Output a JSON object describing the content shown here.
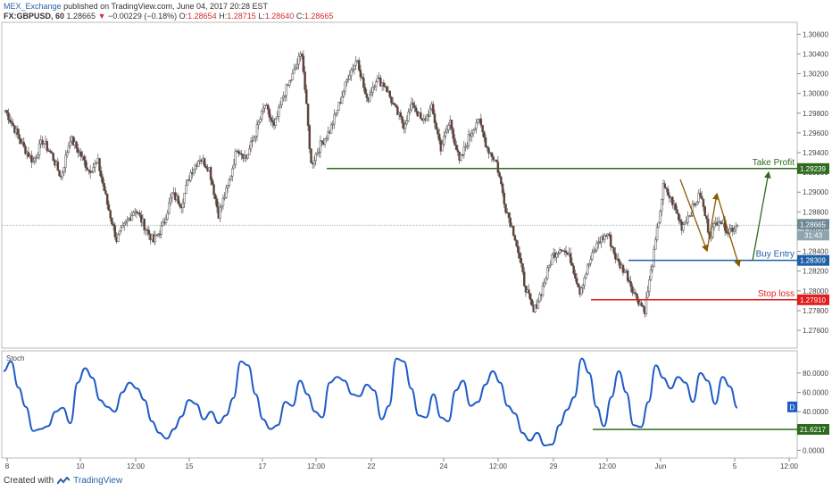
{
  "header": {
    "publisher": "MEX_Exchange",
    "published_text": "published on TradingView.com, June 04, 2017 20:28 EST",
    "symbol": "FX:GBPUSD, 60",
    "last": "1.28665",
    "change": "−0.00229 (−0.18%)",
    "open_label": "O:",
    "open": "1.28654",
    "high_label": "H:",
    "high": "1.28715",
    "low_label": "L:",
    "low": "1.28640",
    "close_label": "C:",
    "close": "1.28665"
  },
  "footer": {
    "created_with": "Created with",
    "brand": "TradingView"
  },
  "colors": {
    "up": "#f2f2f2",
    "down": "#6b3a2c",
    "take_profit": "#2e6b1f",
    "buy_entry": "#1f5fa8",
    "stop_loss": "#e01e1e",
    "stoch": "#1f5cc8",
    "arrows": "#8a5a00"
  },
  "chart_data": [
    {
      "type": "candlestick",
      "ylim": [
        1.2742,
        1.3072
      ],
      "yticks": [
        "1.30600",
        "1.30400",
        "1.30200",
        "1.30000",
        "1.29800",
        "1.29600",
        "1.29400",
        "1.29200",
        "1.29000",
        "1.28800",
        "1.28600",
        "1.28400",
        "1.28200",
        "1.28000",
        "1.27800",
        "1.27600"
      ],
      "xticks": [
        "8",
        "10",
        "12:00",
        "15",
        "17",
        "12:00",
        "22",
        "24",
        "12:00",
        "29",
        "12:00",
        "Jun",
        "5",
        "12:00"
      ],
      "price_path": [
        1.2983,
        1.2964,
        1.2945,
        1.2931,
        1.2952,
        1.2938,
        1.2915,
        1.2955,
        1.294,
        1.2922,
        1.293,
        1.2888,
        1.2852,
        1.2868,
        1.2883,
        1.2866,
        1.285,
        1.2866,
        1.2898,
        1.2888,
        1.292,
        1.2935,
        1.2924,
        1.2878,
        1.2905,
        1.2945,
        1.2935,
        1.296,
        1.2988,
        1.2965,
        1.2998,
        1.3018,
        1.3042,
        1.2928,
        1.2948,
        1.2962,
        1.2988,
        1.3018,
        1.3035,
        1.2992,
        1.3015,
        1.3008,
        1.2985,
        1.2968,
        1.299,
        1.297,
        1.2985,
        1.2945,
        1.2972,
        1.293,
        1.2955,
        1.2975,
        1.2945,
        1.293,
        1.2884,
        1.2855,
        1.2808,
        1.2778,
        1.2804,
        1.2835,
        1.2845,
        1.2832,
        1.28,
        1.2828,
        1.285,
        1.2858,
        1.283,
        1.2818,
        1.2795,
        1.2781,
        1.2838,
        1.2905,
        1.289,
        1.2865,
        1.2881,
        1.2898,
        1.2856,
        1.2874,
        1.2861,
        1.2866
      ],
      "levels": [
        {
          "name": "Take Profit",
          "value": 1.29239,
          "label": "1.29239"
        },
        {
          "name": "Buy Entry",
          "value": 1.28309,
          "label": "1.28309"
        },
        {
          "name": "Stop loss",
          "value": 1.2791,
          "label": "1.27910"
        }
      ],
      "current_price": {
        "value": 1.28665,
        "label": "1.28665",
        "countdown": "31:43"
      }
    },
    {
      "type": "line",
      "title": "Stoch",
      "ylim": [
        -8,
        103
      ],
      "yticks": [
        "80.0000",
        "60.0000",
        "40.0000",
        "20.0000",
        "0.0000"
      ],
      "series": [
        {
          "values": [
            82,
            92,
            65,
            45,
            20,
            22,
            25,
            40,
            44,
            28,
            70,
            85,
            75,
            52,
            45,
            40,
            60,
            70,
            64,
            52,
            30,
            18,
            12,
            22,
            35,
            52,
            48,
            32,
            40,
            28,
            36,
            54,
            92,
            88,
            58,
            32,
            22,
            26,
            50,
            46,
            72,
            58,
            40,
            34,
            70,
            76,
            72,
            58,
            56,
            68,
            62,
            32,
            46,
            95,
            92,
            64,
            36,
            34,
            58,
            34,
            30,
            62,
            72,
            46,
            50,
            68,
            82,
            70,
            46,
            38,
            18,
            10,
            18,
            5,
            6,
            26,
            42,
            55,
            95,
            80,
            45,
            25,
            55,
            82,
            60,
            26,
            24,
            50,
            88,
            75,
            64,
            76,
            70,
            50,
            80,
            72,
            48,
            76,
            66,
            44
          ]
        }
      ],
      "level": {
        "value": 21.6217,
        "label": "21.6217"
      },
      "current_marker": "D"
    }
  ]
}
